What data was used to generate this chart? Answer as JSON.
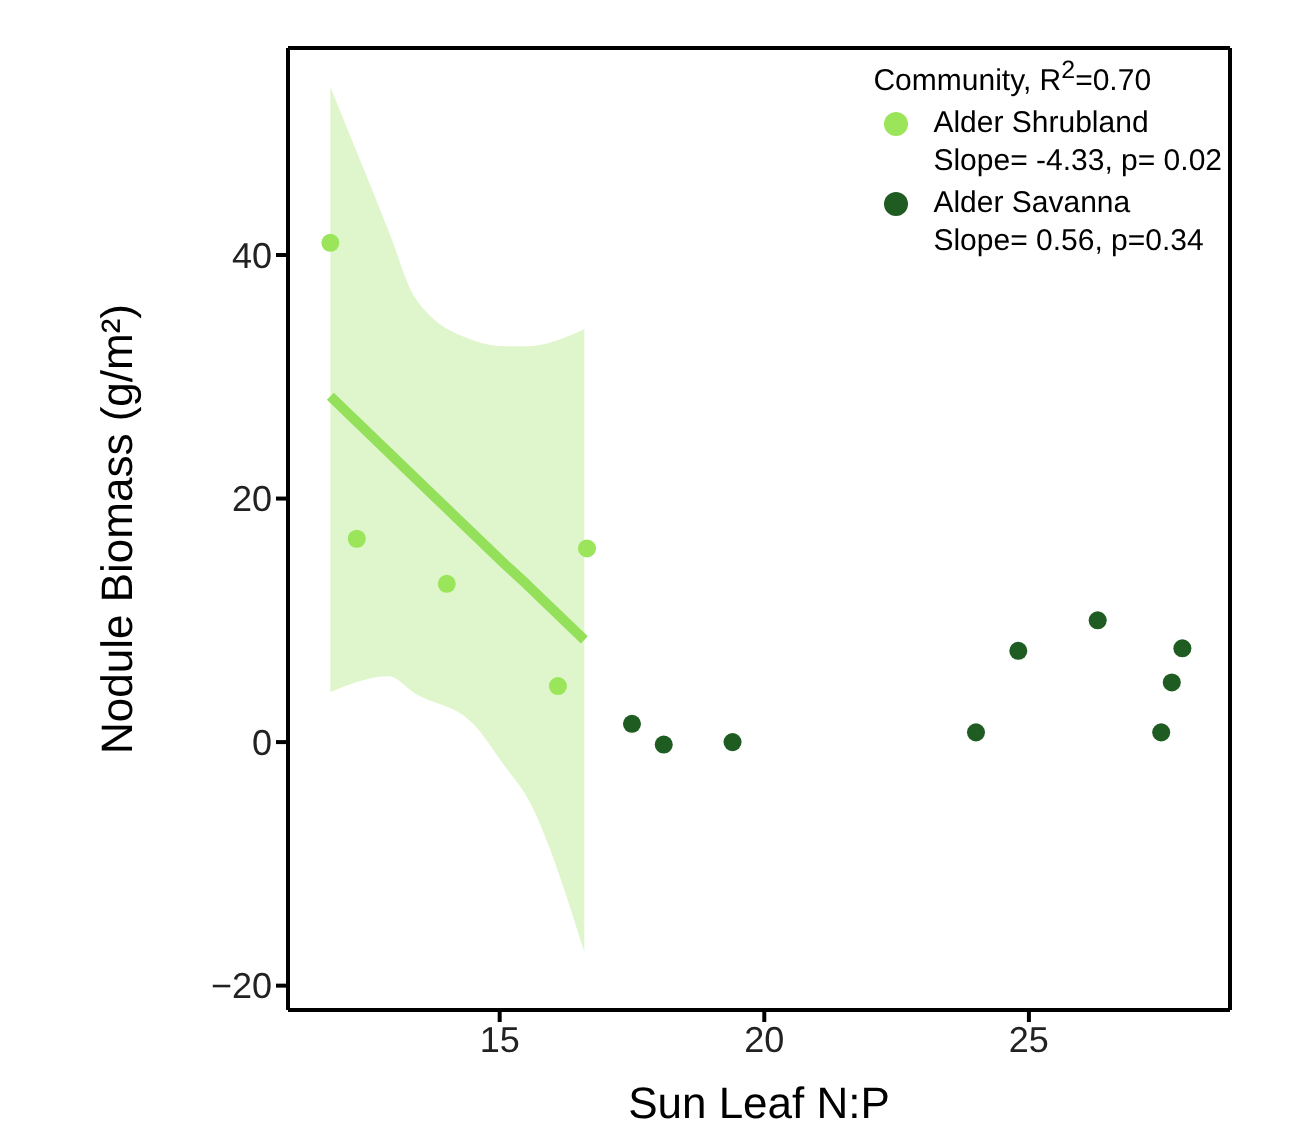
{
  "chart_data": {
    "type": "scatter",
    "xlabel": "Sun Leaf N:P",
    "ylabel": "Nodule Biomass (g/m²)",
    "legend_title": "Community, R$^{2}$=0.70",
    "xlim": [
      11,
      28.8
    ],
    "xticks": [
      15,
      20,
      25
    ],
    "ylim": [
      -22,
      57
    ],
    "yticks": [
      -20,
      0,
      20,
      40
    ],
    "grid": false,
    "legend": "top right",
    "marker": "circle",
    "series": [
      {
        "type": "line",
        "marker": "none",
        "color": "#94e05a",
        "x": [
          11.8,
          12.9,
          13.4,
          14.5,
          15.1,
          15.5,
          16.6
        ],
        "values": [
          28.4,
          23.8,
          21.7,
          17.1,
          14.6,
          13.0,
          8.4
        ],
        "lower": [
          4.1,
          5.4,
          4.0,
          1.5,
          -2.0,
          -4.4,
          -17.2
        ],
        "upper": [
          53.8,
          42.0,
          36.5,
          33.0,
          32.5,
          32.5,
          33.9
        ]
      },
      {
        "name": "Alder Shrubland\nSlope= -4.33, p= 0.02",
        "color": "#9be55a",
        "x": [
          11.8,
          12.3,
          14.0,
          16.1,
          16.65
        ],
        "values": [
          41,
          16.7,
          13,
          4.6,
          15.9
        ]
      },
      {
        "name": "Alder Savanna\nSlope= 0.56, p=0.34",
        "color": "#1f5c22",
        "x": [
          17.5,
          18.1,
          19.4,
          24.0,
          24.8,
          26.3,
          27.5,
          27.7,
          27.9
        ],
        "values": [
          1.5,
          -0.2,
          0,
          0.8,
          7.5,
          10,
          0.8,
          4.9,
          7.7
        ]
      }
    ]
  }
}
